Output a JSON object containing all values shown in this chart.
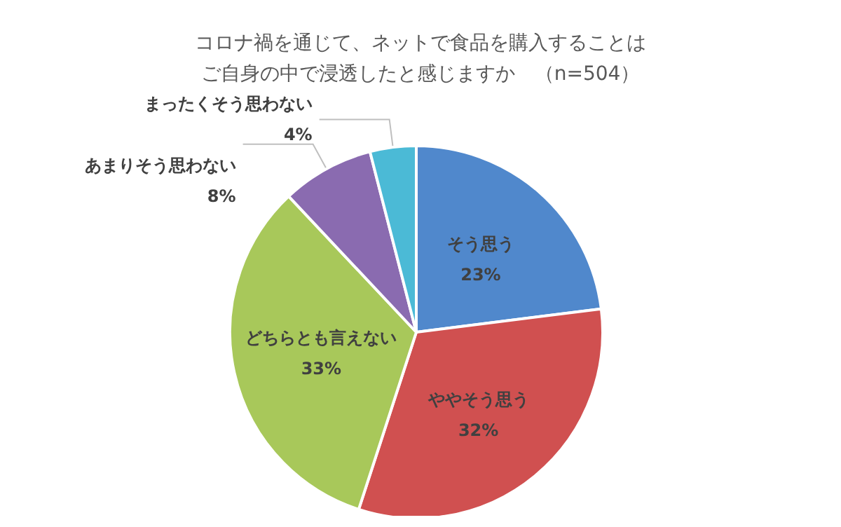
{
  "chart_data": {
    "type": "pie",
    "title": "コロナ禍を通じて、ネットで食品を購入することは",
    "subtitle": "ご自身の中で浸透したと感じますか　（n=504）",
    "categories": [
      "そう思う",
      "ややそう思う",
      "どちらとも言えない",
      "あまりそう思わない",
      "まったくそう思わない"
    ],
    "values": [
      23,
      32,
      33,
      8,
      4
    ],
    "colors": [
      "#5088cc",
      "#d05050",
      "#a8c85a",
      "#8a6bb0",
      "#4bbad6"
    ],
    "value_labels": [
      "23%",
      "32%",
      "33%",
      "8%",
      "4%"
    ],
    "legend": false
  }
}
